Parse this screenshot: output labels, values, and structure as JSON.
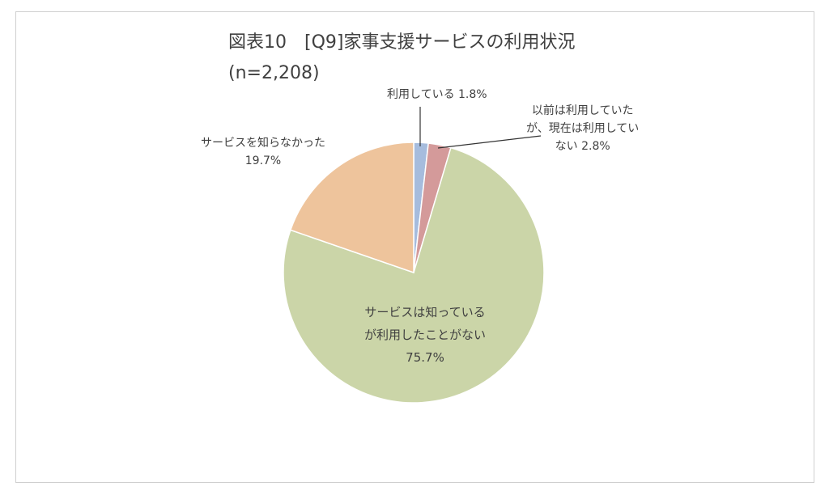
{
  "title": "図表10　[Q9]家事支援サービスの利用状況",
  "subtitle": "(n=2,208)",
  "chart_data": {
    "type": "pie",
    "title": "図表10　[Q9]家事支援サービスの利用状況",
    "subtitle": "(n=2,208)",
    "slices": [
      {
        "label": "利用している",
        "value": 1.8,
        "value_label": "1.8%",
        "color": "#a6bcdd"
      },
      {
        "label": "以前は利用していたが、現在は利用していない",
        "value": 2.8,
        "value_label": "2.8%",
        "color": "#d49a9a"
      },
      {
        "label": "サービスは知っているが利用したことがない",
        "value": 75.7,
        "value_label": "75.7%",
        "color": "#cbd5a8"
      },
      {
        "label": "サービスを知らなかった",
        "value": 19.7,
        "value_label": "19.7%",
        "color": "#eec49c"
      }
    ],
    "label_lines": {
      "s0": [
        "利用している 1.8%"
      ],
      "s1": [
        "以前は利用していた",
        "が、現在は利用してい",
        "ない 2.8%"
      ],
      "s2": [
        "サービスは知っている",
        "が利用したことがない",
        "75.7%"
      ],
      "s3": [
        "サービスを知らなかった",
        "19.7%"
      ]
    },
    "legend": "none"
  }
}
